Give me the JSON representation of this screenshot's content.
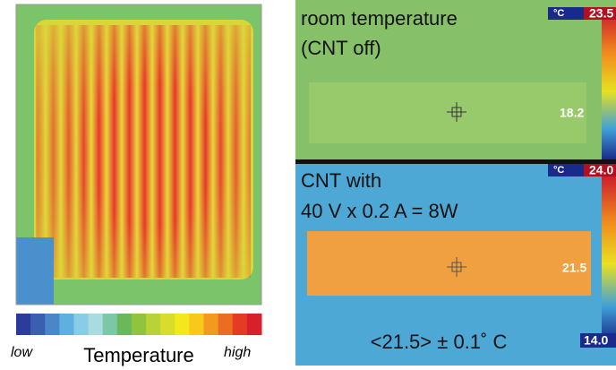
{
  "left_panel": {
    "scale_low": "low",
    "scale_title": "Temperature",
    "scale_high": "high"
  },
  "top_panel": {
    "caption_lines": [
      "room temperature",
      "(CNT off)"
    ],
    "unit": "°C",
    "scale_max": "23.5",
    "spot_value": "18.2"
  },
  "bottom_panel": {
    "caption_lines": [
      "CNT with",
      "40 V x 0.2 A = 8W"
    ],
    "unit": "°C",
    "scale_max": "24.0",
    "spot_value": "21.5",
    "scale_min": "14.0",
    "average": "<21.5> ± 0.1˚ C"
  }
}
